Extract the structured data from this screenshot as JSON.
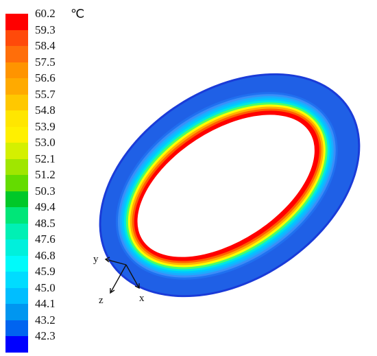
{
  "legend": {
    "unit": "℃",
    "levels": [
      {
        "label": "60.2",
        "color": "#ff0000"
      },
      {
        "label": "59.3",
        "color": "#ff4a0a"
      },
      {
        "label": "58.4",
        "color": "#ff6e0a"
      },
      {
        "label": "57.5",
        "color": "#ff9400"
      },
      {
        "label": "56.6",
        "color": "#ffaa00"
      },
      {
        "label": "55.7",
        "color": "#ffc800"
      },
      {
        "label": "54.8",
        "color": "#ffe600"
      },
      {
        "label": "53.9",
        "color": "#fff000"
      },
      {
        "label": "53.0",
        "color": "#d4f000"
      },
      {
        "label": "52.1",
        "color": "#a0e600"
      },
      {
        "label": "51.2",
        "color": "#64dc00"
      },
      {
        "label": "50.3",
        "color": "#00c828"
      },
      {
        "label": "49.4",
        "color": "#00e678"
      },
      {
        "label": "48.5",
        "color": "#00f0b4"
      },
      {
        "label": "47.6",
        "color": "#00f0dc"
      },
      {
        "label": "46.8",
        "color": "#00fafa"
      },
      {
        "label": "45.9",
        "color": "#00dcff"
      },
      {
        "label": "45.0",
        "color": "#00beff"
      },
      {
        "label": "44.1",
        "color": "#0096f0"
      },
      {
        "label": "43.2",
        "color": "#0064f0"
      },
      {
        "label": "42.3",
        "color": "#0000ff"
      }
    ]
  },
  "axes": {
    "y": "y",
    "z": "z",
    "x": "x"
  },
  "ring": {
    "outer_color": "#1f60e6",
    "band_colors": [
      "#2070f0",
      "#3a8ef8",
      "#1aaeff",
      "#00c8ff",
      "#00e8e0",
      "#4cff66",
      "#ffff00",
      "#ffb000",
      "#ff6000",
      "#ff0000"
    ]
  }
}
